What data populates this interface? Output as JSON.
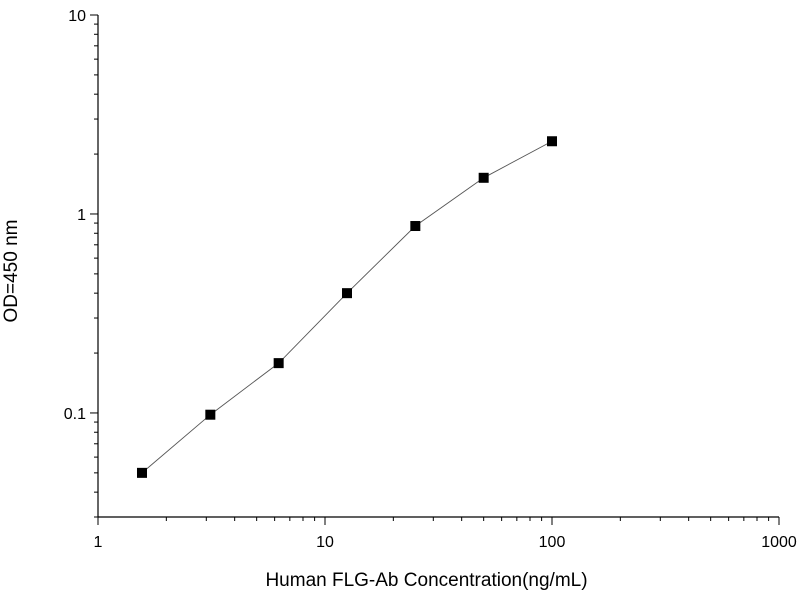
{
  "chart_data": {
    "type": "scatter",
    "title": "",
    "xlabel": "Human FLG-Ab Concentration(ng/mL)",
    "ylabel": "OD=450 nm",
    "x_scale": "log",
    "y_scale": "log",
    "xlim": [
      1,
      1000
    ],
    "ylim": [
      0.03,
      10
    ],
    "x_ticks": [
      1,
      10,
      100,
      1000
    ],
    "x_tick_labels": [
      "1",
      "10",
      "100",
      "1000"
    ],
    "y_ticks": [
      0.1,
      1,
      10
    ],
    "y_tick_labels": [
      "0.1",
      "1",
      "10"
    ],
    "grid": false,
    "legend": "none",
    "line_connected": true,
    "marker": "square",
    "colors": {
      "marker": "#000000",
      "line": "#555555",
      "axis": "#000000"
    },
    "series": [
      {
        "x": [
          1.5625,
          3.125,
          6.25,
          12.5,
          25,
          50,
          100
        ],
        "y": [
          0.05,
          0.098,
          0.178,
          0.4,
          0.87,
          1.52,
          2.32
        ]
      }
    ]
  }
}
